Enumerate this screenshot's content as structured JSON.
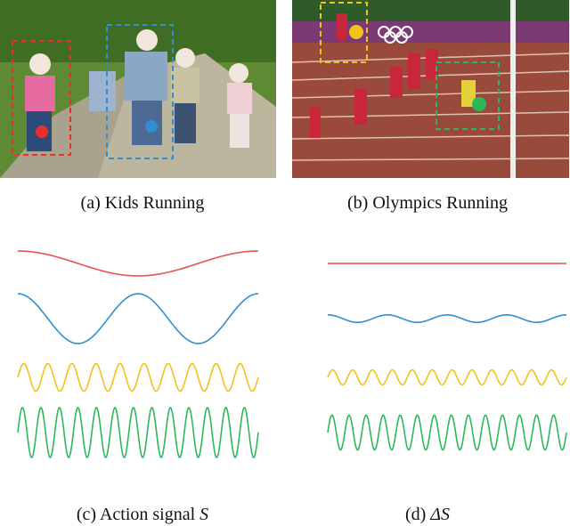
{
  "captions": {
    "a": "(a) Kids Running",
    "b": "(b) Olympics Running",
    "c_prefix": "(c) Action signal ",
    "c_symbol": "S",
    "d_prefix": "(d) ",
    "d_symbol": "ΔS"
  },
  "colors": {
    "red": "#e8524f",
    "blue": "#2f8fd1",
    "yellow": "#f2c21b",
    "green": "#2cb85a",
    "grass": "#6f9b3a",
    "path": "#b8b09a",
    "track": "#9a4a3a"
  },
  "signals": {
    "left": [
      {
        "name": "red",
        "cycles": 1,
        "amplitude": 0.5
      },
      {
        "name": "blue",
        "cycles": 2,
        "amplitude": 1.0
      },
      {
        "name": "yellow",
        "cycles": 10,
        "amplitude": 0.55
      },
      {
        "name": "green",
        "cycles": 13,
        "amplitude": 1.0
      }
    ],
    "right": [
      {
        "name": "red",
        "cycles": 0,
        "amplitude": 0.0
      },
      {
        "name": "blue",
        "cycles": 4,
        "amplitude": 0.15
      },
      {
        "name": "yellow",
        "cycles": 12,
        "amplitude": 0.3
      },
      {
        "name": "green",
        "cycles": 14,
        "amplitude": 0.7
      }
    ]
  }
}
